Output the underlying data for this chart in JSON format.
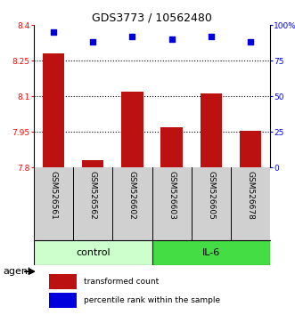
{
  "title": "GDS3773 / 10562480",
  "samples": [
    "GSM526561",
    "GSM526562",
    "GSM526602",
    "GSM526603",
    "GSM526605",
    "GSM526678"
  ],
  "bar_values": [
    8.28,
    7.83,
    8.12,
    7.97,
    8.11,
    7.955
  ],
  "percentile_values": [
    95,
    88,
    92,
    90,
    92,
    88
  ],
  "bar_color": "#bb1111",
  "dot_color": "#0000dd",
  "ylim_left": [
    7.8,
    8.4
  ],
  "ylim_right": [
    0,
    100
  ],
  "yticks_left": [
    7.8,
    7.95,
    8.1,
    8.25,
    8.4
  ],
  "yticks_right": [
    0,
    25,
    50,
    75,
    100
  ],
  "ytick_labels_left": [
    "7.8",
    "7.95",
    "8.1",
    "8.25",
    "8.4"
  ],
  "ytick_labels_right": [
    "0",
    "25",
    "50",
    "75",
    "100%"
  ],
  "hlines": [
    7.95,
    8.1,
    8.25
  ],
  "legend_items": [
    {
      "color": "#bb1111",
      "label": "transformed count"
    },
    {
      "color": "#0000dd",
      "label": "percentile rank within the sample"
    }
  ],
  "bar_width": 0.55,
  "label_area_color": "#d0d0d0",
  "control_color": "#ccffcc",
  "il6_color": "#44dd44",
  "control_label": "control",
  "il6_label": "IL-6",
  "agent_label": "agent"
}
